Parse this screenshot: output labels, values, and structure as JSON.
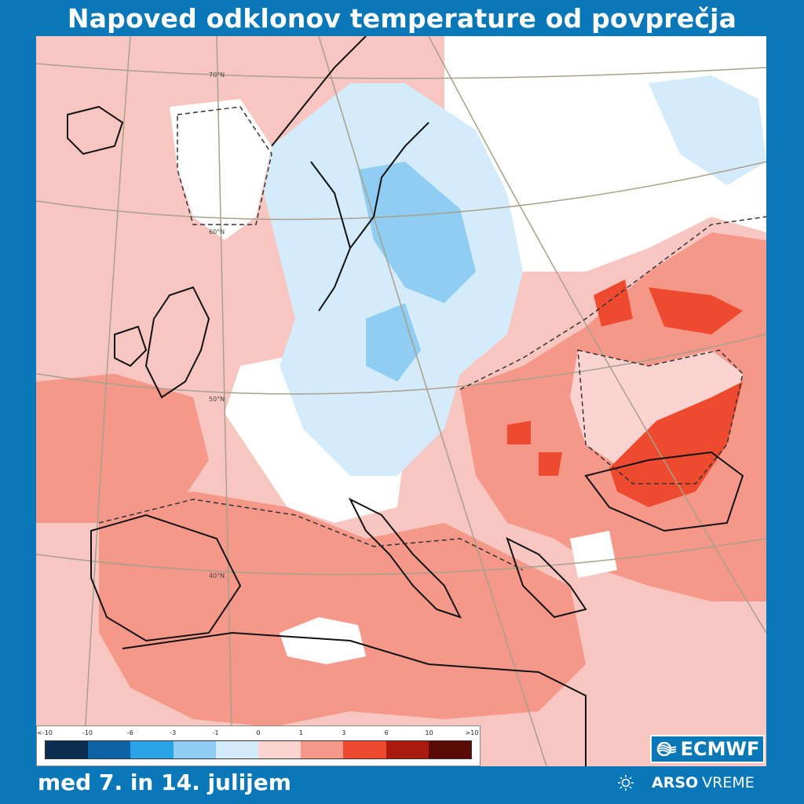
{
  "title": "Napoved odklonov temperature od povprečja",
  "date_range": "med 7. in 14. julijem",
  "map": {
    "latitude_labels": [
      "70°N",
      "60°N",
      "50°N",
      "40°N"
    ],
    "region": "Europe"
  },
  "legend": {
    "ticks": [
      "<-10",
      "-10",
      "-6",
      "-3",
      "-1",
      "0",
      "1",
      "3",
      "6",
      "10",
      ">10"
    ],
    "colors": [
      "#0b2d4f",
      "#0d63a5",
      "#2aa3e6",
      "#8fcdf2",
      "#d3ebfb",
      "#ffffff",
      "#fbd3d0",
      "#f5988a",
      "#ee4a30",
      "#aa1a10",
      "#5a0a06"
    ]
  },
  "branding": {
    "ecmwf_label": "ECMWF",
    "arso_bold": "ARSO",
    "arso_light": "VREME",
    "ecmwf_icon": "ecmwf-waves-icon",
    "arso_icon": "sun-icon"
  }
}
